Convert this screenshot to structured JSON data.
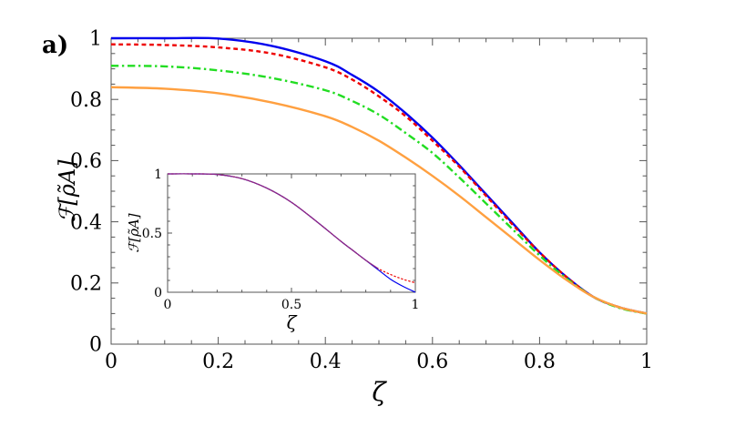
{
  "panel_label": "a)",
  "chart_data": [
    {
      "type": "line",
      "xlabel": "ζ",
      "ylabel": "ℱ[ρ̃A]",
      "xlim": [
        0,
        1
      ],
      "ylim": [
        0,
        1
      ],
      "xticks": [
        "0",
        "0.2",
        "0.4",
        "0.6",
        "0.8",
        "1"
      ],
      "yticks": [
        "0",
        "0.2",
        "0.4",
        "0.6",
        "0.8",
        "1"
      ],
      "grid": false,
      "series": [
        {
          "color": "#0000ee",
          "style": "solid",
          "x": [
            0,
            0.1,
            0.2,
            0.3,
            0.4,
            0.45,
            0.5,
            0.55,
            0.6,
            0.65,
            0.7,
            0.75,
            0.8,
            0.85,
            0.9,
            0.95,
            1.0
          ],
          "y": [
            1.0,
            1.0,
            0.999,
            0.975,
            0.925,
            0.88,
            0.825,
            0.755,
            0.675,
            0.585,
            0.49,
            0.395,
            0.3,
            0.22,
            0.155,
            0.12,
            0.1
          ]
        },
        {
          "color": "#ee0000",
          "style": "dotted",
          "x": [
            0,
            0.1,
            0.2,
            0.3,
            0.4,
            0.45,
            0.5,
            0.55,
            0.6,
            0.65,
            0.7,
            0.75,
            0.8,
            0.85,
            0.9,
            0.95,
            1.0
          ],
          "y": [
            0.98,
            0.978,
            0.97,
            0.95,
            0.905,
            0.865,
            0.81,
            0.745,
            0.665,
            0.58,
            0.485,
            0.39,
            0.3,
            0.22,
            0.155,
            0.12,
            0.1
          ]
        },
        {
          "color": "#22dd22",
          "style": "dashdot",
          "x": [
            0,
            0.1,
            0.2,
            0.3,
            0.4,
            0.45,
            0.5,
            0.55,
            0.6,
            0.65,
            0.7,
            0.75,
            0.8,
            0.85,
            0.9,
            0.95,
            1.0
          ],
          "y": [
            0.91,
            0.908,
            0.895,
            0.87,
            0.83,
            0.795,
            0.75,
            0.69,
            0.625,
            0.545,
            0.46,
            0.375,
            0.29,
            0.215,
            0.155,
            0.118,
            0.1
          ]
        },
        {
          "color": "#ffa040",
          "style": "solid",
          "x": [
            0,
            0.1,
            0.2,
            0.3,
            0.4,
            0.45,
            0.5,
            0.55,
            0.6,
            0.65,
            0.7,
            0.75,
            0.8,
            0.85,
            0.9,
            0.95,
            1.0
          ],
          "y": [
            0.84,
            0.835,
            0.82,
            0.79,
            0.745,
            0.71,
            0.665,
            0.61,
            0.55,
            0.485,
            0.415,
            0.345,
            0.275,
            0.21,
            0.155,
            0.12,
            0.1
          ]
        }
      ]
    },
    {
      "type": "line",
      "xlabel": "ζ",
      "ylabel": "ℱ[ρ̃A]",
      "xlim": [
        0,
        1
      ],
      "ylim": [
        0,
        1
      ],
      "xticks": [
        "0",
        "0.5",
        "1"
      ],
      "yticks": [
        "0",
        "0.5",
        "1"
      ],
      "grid": false,
      "series": [
        {
          "color": "#0000ee",
          "style": "solid",
          "x": [
            0,
            0.1,
            0.2,
            0.3,
            0.4,
            0.5,
            0.6,
            0.7,
            0.75,
            0.8,
            0.85,
            0.9,
            0.95,
            1.0
          ],
          "y": [
            1.0,
            1.0,
            0.995,
            0.96,
            0.88,
            0.76,
            0.6,
            0.43,
            0.35,
            0.27,
            0.19,
            0.11,
            0.05,
            0.0
          ]
        },
        {
          "color": "#ee0000",
          "style": "dotted",
          "x": [
            0,
            0.1,
            0.2,
            0.3,
            0.4,
            0.5,
            0.6,
            0.7,
            0.75,
            0.8,
            0.85,
            0.9,
            0.95,
            1.0
          ],
          "y": [
            1.0,
            1.0,
            0.995,
            0.96,
            0.88,
            0.76,
            0.6,
            0.43,
            0.35,
            0.27,
            0.2,
            0.15,
            0.11,
            0.08
          ]
        },
        {
          "color": "#8a2a8a",
          "style": "solid",
          "x": [
            0,
            0.1,
            0.2,
            0.3,
            0.4,
            0.5,
            0.6,
            0.7,
            0.75,
            0.8,
            0.85
          ],
          "y": [
            1.0,
            1.0,
            0.995,
            0.96,
            0.88,
            0.76,
            0.6,
            0.43,
            0.35,
            0.27,
            0.2
          ]
        }
      ]
    }
  ]
}
